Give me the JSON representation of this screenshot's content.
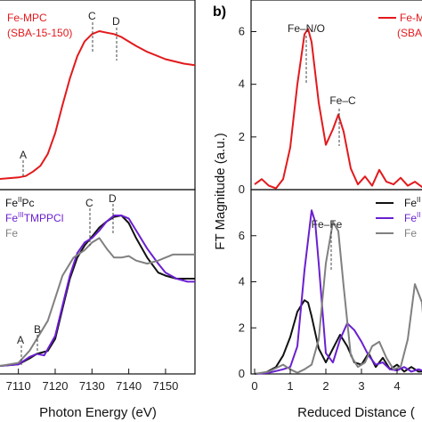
{
  "colors": {
    "red": "#e3191c",
    "black": "#111111",
    "purple": "#6a1fd1",
    "gray": "#808080"
  },
  "left": {
    "xlabel": "Photon Energy (eV)",
    "x_ticks": [
      "7110",
      "7120",
      "7130",
      "7140",
      "7150"
    ],
    "top_panel": {
      "legend": [
        "Fe-MPC",
        "(SBA-15-150)"
      ],
      "annotations": [
        "A",
        "C",
        "D"
      ]
    },
    "bottom_panel": {
      "legend": [
        {
          "base": "Fe",
          "sup": "II",
          "rest": "Pc"
        },
        {
          "base": "Fe",
          "sup": "III",
          "rest": "TMPPCl"
        },
        {
          "base": "Fe",
          "sup": "",
          "rest": ""
        }
      ],
      "annotations": [
        "A",
        "B",
        "C",
        "D"
      ]
    }
  },
  "right": {
    "panel_letter": "b)",
    "xlabel": "Reduced Distance (",
    "ylabel": "FT Magnitude (a.u.)",
    "top_panel": {
      "y_ticks": [
        "0",
        "2",
        "4",
        "6"
      ],
      "legend_lines": [
        "Fe-M",
        "(SBA"
      ],
      "annotations": [
        "Fe–N/O",
        "Fe–C"
      ]
    },
    "bottom_panel": {
      "y_ticks": [
        "0",
        "2",
        "4",
        "6"
      ],
      "legend_lines": [
        "Fe",
        "Fe",
        "Fe"
      ],
      "legend_sups": [
        "II",
        "II",
        ""
      ],
      "annotations": [
        "Fe–Fe"
      ]
    },
    "x_ticks": [
      "0",
      "1",
      "2",
      "3",
      "4"
    ]
  },
  "chart_data": [
    {
      "type": "line",
      "xlabel": "Photon Energy (eV)",
      "xlim": [
        7105,
        7158
      ],
      "series": [
        {
          "name": "Fe-MPC (SBA-15-150)",
          "color": "#e3191c",
          "x": [
            7105,
            7110,
            7112,
            7114,
            7116,
            7118,
            7120,
            7122,
            7124,
            7126,
            7128,
            7130,
            7132,
            7134,
            7136,
            7138,
            7140,
            7142,
            7145,
            7150,
            7155,
            7158
          ],
          "y": [
            0.0,
            0.01,
            0.02,
            0.05,
            0.09,
            0.17,
            0.31,
            0.5,
            0.68,
            0.83,
            0.93,
            0.98,
            1.0,
            0.99,
            0.98,
            0.96,
            0.93,
            0.9,
            0.86,
            0.81,
            0.78,
            0.77
          ]
        }
      ]
    },
    {
      "type": "line",
      "xlabel": "Photon Energy (eV)",
      "xlim": [
        7105,
        7158
      ],
      "series": [
        {
          "name": "FeIIPc",
          "color": "#111111",
          "x": [
            7105,
            7110,
            7113,
            7115,
            7118,
            7120,
            7122,
            7124,
            7126,
            7128,
            7130,
            7132,
            7134,
            7136,
            7138,
            7140,
            7142,
            7145,
            7148,
            7150,
            7153,
            7156,
            7158
          ],
          "y": [
            0.0,
            0.01,
            0.05,
            0.08,
            0.1,
            0.18,
            0.38,
            0.58,
            0.72,
            0.8,
            0.86,
            0.92,
            0.96,
            0.99,
            1.0,
            0.95,
            0.85,
            0.72,
            0.62,
            0.6,
            0.58,
            0.58,
            0.58
          ]
        },
        {
          "name": "FeIIITMPPCl",
          "color": "#6a1fd1",
          "x": [
            7105,
            7110,
            7113,
            7115,
            7117,
            7120,
            7122,
            7124,
            7126,
            7128,
            7130,
            7132,
            7134,
            7136,
            7138,
            7140,
            7142,
            7145,
            7148,
            7150,
            7153,
            7156,
            7158
          ],
          "y": [
            0.0,
            0.01,
            0.06,
            0.08,
            0.07,
            0.2,
            0.4,
            0.6,
            0.75,
            0.82,
            0.85,
            0.9,
            0.96,
            1.0,
            1.0,
            0.98,
            0.9,
            0.78,
            0.68,
            0.62,
            0.58,
            0.56,
            0.56
          ]
        },
        {
          "name": "Fe",
          "color": "#808080",
          "x": [
            7105,
            7110,
            7113,
            7116,
            7118,
            7120,
            7122,
            7125,
            7128,
            7130,
            7132,
            7134,
            7136,
            7138,
            7140,
            7142,
            7145,
            7148,
            7150,
            7152,
            7155,
            7158
          ],
          "y": [
            0.0,
            0.02,
            0.1,
            0.22,
            0.3,
            0.45,
            0.6,
            0.72,
            0.77,
            0.82,
            0.85,
            0.78,
            0.72,
            0.72,
            0.73,
            0.7,
            0.68,
            0.7,
            0.72,
            0.74,
            0.74,
            0.74
          ]
        }
      ]
    },
    {
      "type": "line",
      "ylabel": "FT Magnitude (a.u.)",
      "xlim": [
        -0.1,
        4.9
      ],
      "ylim": [
        0,
        7.2
      ],
      "series": [
        {
          "name": "Fe-MPC (SBA-15-150)",
          "color": "#e3191c",
          "x": [
            0,
            0.2,
            0.4,
            0.6,
            0.8,
            1.0,
            1.2,
            1.4,
            1.5,
            1.6,
            1.8,
            2.0,
            2.2,
            2.35,
            2.5,
            2.7,
            2.9,
            3.1,
            3.3,
            3.5,
            3.7,
            3.9,
            4.1,
            4.3,
            4.5,
            4.7,
            4.8
          ],
          "y": [
            0.2,
            0.4,
            0.15,
            0.05,
            0.4,
            1.6,
            4.0,
            5.9,
            6.1,
            5.6,
            3.3,
            1.7,
            2.3,
            2.85,
            2.2,
            0.8,
            0.2,
            0.5,
            0.15,
            0.75,
            0.3,
            0.2,
            0.45,
            0.15,
            0.3,
            0.1,
            0.15
          ]
        }
      ]
    },
    {
      "type": "line",
      "xlabel": "Reduced Distance (",
      "xlim": [
        -0.1,
        4.9
      ],
      "ylim": [
        0,
        8
      ],
      "series": [
        {
          "name": "FeII",
          "color": "#111111",
          "x": [
            0,
            0.3,
            0.6,
            0.8,
            1.0,
            1.2,
            1.4,
            1.5,
            1.6,
            1.8,
            2.0,
            2.2,
            2.4,
            2.6,
            2.8,
            3.0,
            3.2,
            3.4,
            3.6,
            3.8,
            4.0,
            4.2,
            4.4,
            4.6,
            4.8
          ],
          "y": [
            0.0,
            0.05,
            0.3,
            0.8,
            1.6,
            2.7,
            3.2,
            3.1,
            2.5,
            1.1,
            0.5,
            1.1,
            1.7,
            1.2,
            0.5,
            0.4,
            0.9,
            0.3,
            0.7,
            0.2,
            0.4,
            0.1,
            0.3,
            0.1,
            0.1
          ]
        },
        {
          "name": "FeII",
          "color": "#6a1fd1",
          "x": [
            0,
            0.4,
            0.8,
            1.0,
            1.2,
            1.4,
            1.6,
            1.7,
            1.8,
            2.0,
            2.2,
            2.4,
            2.6,
            2.8,
            3.0,
            3.2,
            3.4,
            3.6,
            3.8,
            4.0,
            4.2,
            4.4,
            4.6,
            4.8
          ],
          "y": [
            0.0,
            0.05,
            0.2,
            0.3,
            1.2,
            4.5,
            7.1,
            6.6,
            4.8,
            0.9,
            0.5,
            1.5,
            2.2,
            1.9,
            1.4,
            0.8,
            0.4,
            0.5,
            0.2,
            0.15,
            0.3,
            0.1,
            0.2,
            0.1
          ]
        },
        {
          "name": "Fe",
          "color": "#808080",
          "x": [
            0,
            0.4,
            0.8,
            1.0,
            1.2,
            1.4,
            1.6,
            1.8,
            2.0,
            2.2,
            2.35,
            2.5,
            2.7,
            2.9,
            3.1,
            3.3,
            3.5,
            3.7,
            3.9,
            4.1,
            4.3,
            4.5,
            4.7,
            4.8
          ],
          "y": [
            0.0,
            0.1,
            0.4,
            0.2,
            0.05,
            0.2,
            0.4,
            1.5,
            4.8,
            6.6,
            6.2,
            3.8,
            0.8,
            0.3,
            0.5,
            1.2,
            1.4,
            0.7,
            0.2,
            0.3,
            1.5,
            3.9,
            3.1,
            1.2
          ]
        }
      ]
    }
  ]
}
